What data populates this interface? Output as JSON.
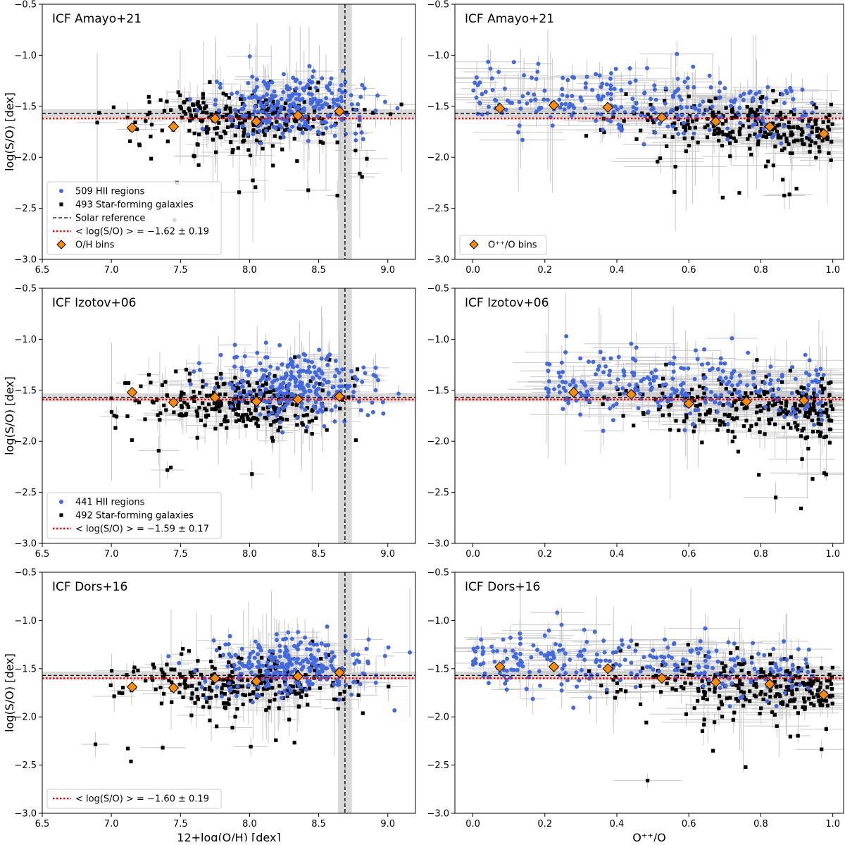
{
  "figure": {
    "legend_titles": {
      "hii": "HII regions",
      "sfg": "Star-forming galaxies",
      "solar": "Solar reference",
      "oh_bins": "O/H bins",
      "opp_bins": "O$^{++}$/O bins"
    },
    "colors": {
      "hii": "#4169e1",
      "sfg": "#000000",
      "bins": "#ff8c00",
      "mean_line": "#ff0000",
      "solar_line": "#000000",
      "error_bars": "#c8c8c8",
      "solar_band": "#d9d9d9"
    }
  },
  "chart_data": [
    {
      "id": "p1",
      "type": "scatter",
      "title": "ICF Amayo+21",
      "xlabel": "",
      "ylabel": "log(S/O) [dex]",
      "xlim": [
        6.5,
        9.2
      ],
      "ylim": [
        -3.0,
        -0.5
      ],
      "xticks": [
        "6.5",
        "7.0",
        "7.5",
        "8.0",
        "8.5",
        "9.0"
      ],
      "yticks": [
        "-3.0",
        "-2.5",
        "-2.0",
        "-1.5",
        "-1.0",
        "-0.5"
      ],
      "x_center": 8.08,
      "x_spread": 0.42,
      "y_center": -1.63,
      "y_spread": 0.18,
      "hii_center": 8.25,
      "hii_spread": 0.35,
      "hii_y_center": -1.48,
      "solar_x": 8.69,
      "solar_y": -1.57,
      "mean": -1.62,
      "n_hii_count": "509",
      "n_sfg_count": "493",
      "legend": {
        "hii": "509 HII regions",
        "sfg": "493 Star-forming galaxies",
        "solar": "Solar reference",
        "mean": "< log(S/O) > = −1.62 ± 0.19",
        "bins": "O/H bins"
      },
      "bins": [
        {
          "x": 7.15,
          "y": -1.71
        },
        {
          "x": 7.45,
          "y": -1.7
        },
        {
          "x": 7.75,
          "y": -1.62
        },
        {
          "x": 8.05,
          "y": -1.65
        },
        {
          "x": 8.35,
          "y": -1.59
        },
        {
          "x": 8.65,
          "y": -1.55
        }
      ]
    },
    {
      "id": "p2",
      "type": "scatter",
      "title": "ICF Amayo+21",
      "xlabel": "",
      "ylabel": "",
      "xlim": [
        -0.05,
        1.03
      ],
      "ylim": [
        -3.0,
        -0.5
      ],
      "xticks": [
        "0.0",
        "0.2",
        "0.4",
        "0.6",
        "0.8",
        "1.0"
      ],
      "yticks": [
        "-3.0",
        "-2.5",
        "-2.0",
        "-1.5",
        "-1.0",
        "-0.5"
      ],
      "solar_y": -1.57,
      "mean": -1.62,
      "legend": {
        "bins": "O⁺⁺/O bins"
      },
      "bins": [
        {
          "x": 0.075,
          "y": -1.52
        },
        {
          "x": 0.225,
          "y": -1.49
        },
        {
          "x": 0.375,
          "y": -1.51
        },
        {
          "x": 0.525,
          "y": -1.61
        },
        {
          "x": 0.675,
          "y": -1.65
        },
        {
          "x": 0.825,
          "y": -1.7
        },
        {
          "x": 0.975,
          "y": -1.77
        }
      ]
    },
    {
      "id": "p3",
      "type": "scatter",
      "title": "ICF Izotov+06",
      "xlabel": "",
      "ylabel": "log(S/O) [dex]",
      "xlim": [
        6.5,
        9.2
      ],
      "ylim": [
        -3.0,
        -0.5
      ],
      "xticks": [
        "6.5",
        "7.0",
        "7.5",
        "8.0",
        "8.5",
        "9.0"
      ],
      "yticks": [
        "-3.0",
        "-2.5",
        "-2.0",
        "-1.5",
        "-1.0",
        "-0.5"
      ],
      "solar_x": 8.69,
      "solar_y": -1.57,
      "mean": -1.59,
      "legend": {
        "hii": "441 HII regions",
        "sfg": "492 Star-forming galaxies",
        "mean": "< log(S/O) > = −1.59 ± 0.17"
      },
      "bins": [
        {
          "x": 7.15,
          "y": -1.52
        },
        {
          "x": 7.45,
          "y": -1.62
        },
        {
          "x": 7.75,
          "y": -1.57
        },
        {
          "x": 8.05,
          "y": -1.61
        },
        {
          "x": 8.35,
          "y": -1.59
        },
        {
          "x": 8.65,
          "y": -1.56
        }
      ]
    },
    {
      "id": "p4",
      "type": "scatter",
      "title": "ICF Izotov+06",
      "xlabel": "",
      "ylabel": "",
      "xlim": [
        -0.05,
        1.03
      ],
      "ylim": [
        -3.0,
        -0.5
      ],
      "xticks": [
        "0.0",
        "0.2",
        "0.4",
        "0.6",
        "0.8",
        "1.0"
      ],
      "yticks": [
        "-3.0",
        "-2.5",
        "-2.0",
        "-1.5",
        "-1.0",
        "-0.5"
      ],
      "solar_y": -1.57,
      "mean": -1.59,
      "bins": [
        {
          "x": 0.28,
          "y": -1.52
        },
        {
          "x": 0.44,
          "y": -1.54
        },
        {
          "x": 0.6,
          "y": -1.63
        },
        {
          "x": 0.76,
          "y": -1.61
        },
        {
          "x": 0.92,
          "y": -1.6
        }
      ]
    },
    {
      "id": "p5",
      "type": "scatter",
      "title": "ICF Dors+16",
      "xlabel": "12+log(O/H) [dex]",
      "ylabel": "log(S/O) [dex]",
      "xlim": [
        6.5,
        9.2
      ],
      "ylim": [
        -3.0,
        -0.5
      ],
      "xticks": [
        "6.5",
        "7.0",
        "7.5",
        "8.0",
        "8.5",
        "9.0"
      ],
      "yticks": [
        "-3.0",
        "-2.5",
        "-2.0",
        "-1.5",
        "-1.0",
        "-0.5"
      ],
      "solar_x": 8.69,
      "solar_y": -1.57,
      "mean": -1.6,
      "legend": {
        "mean": "< log(S/O) > = −1.60 ± 0.19"
      },
      "bins": [
        {
          "x": 7.15,
          "y": -1.69
        },
        {
          "x": 7.45,
          "y": -1.7
        },
        {
          "x": 7.75,
          "y": -1.6
        },
        {
          "x": 8.05,
          "y": -1.63
        },
        {
          "x": 8.35,
          "y": -1.58
        },
        {
          "x": 8.65,
          "y": -1.54
        }
      ]
    },
    {
      "id": "p6",
      "type": "scatter",
      "title": "ICF Dors+16",
      "xlabel": "O⁺⁺/O",
      "ylabel": "",
      "xlim": [
        -0.05,
        1.03
      ],
      "ylim": [
        -3.0,
        -0.5
      ],
      "xticks": [
        "0.0",
        "0.2",
        "0.4",
        "0.6",
        "0.8",
        "1.0"
      ],
      "yticks": [
        "-3.0",
        "-2.5",
        "-2.0",
        "-1.5",
        "-1.0",
        "-0.5"
      ],
      "solar_y": -1.57,
      "mean": -1.6,
      "bins": [
        {
          "x": 0.075,
          "y": -1.48
        },
        {
          "x": 0.225,
          "y": -1.48
        },
        {
          "x": 0.375,
          "y": -1.5
        },
        {
          "x": 0.525,
          "y": -1.6
        },
        {
          "x": 0.675,
          "y": -1.64
        },
        {
          "x": 0.825,
          "y": -1.66
        },
        {
          "x": 0.975,
          "y": -1.77
        }
      ]
    }
  ]
}
